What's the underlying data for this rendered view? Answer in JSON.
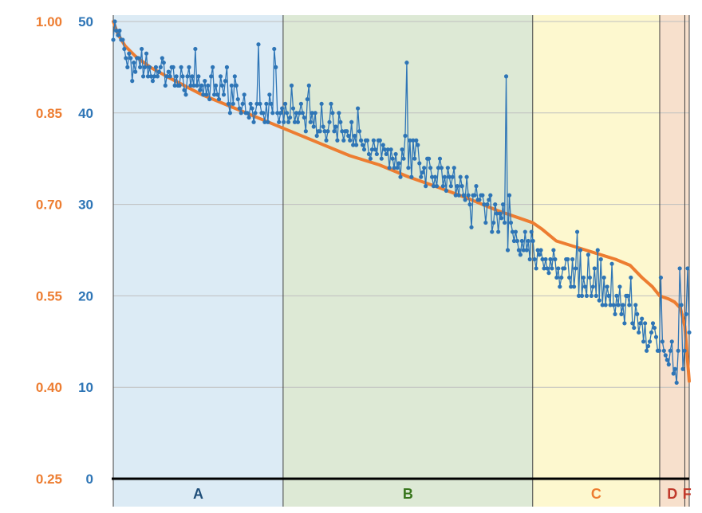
{
  "chart_data": {
    "type": "line",
    "title": "",
    "xlabel": "",
    "ylabel": "",
    "colors": {
      "blue_series": "#2e75b6",
      "orange_series": "#ed7d31",
      "left_axis_labels": "#ed7d31",
      "right_axis_labels": "#2e75b6",
      "grid": "#bfbfbf",
      "axis": "#000000"
    },
    "y_axis_outer": {
      "ticks": [
        "1.00",
        "0.85",
        "0.70",
        "0.55",
        "0.40",
        "0.25"
      ],
      "range": [
        0.25,
        1.0
      ]
    },
    "y_axis_inner": {
      "ticks": [
        "50",
        "40",
        "30",
        "20",
        "10",
        "0"
      ],
      "range": [
        0,
        50
      ]
    },
    "grid": true,
    "x_range": [
      0,
      390
    ],
    "bands": [
      {
        "label": "A",
        "start": 0,
        "end": 115,
        "fill": "#dcebf5",
        "label_color": "#1f4e79"
      },
      {
        "label": "B",
        "start": 115,
        "end": 284,
        "fill": "#dde9d5",
        "label_color": "#38761d"
      },
      {
        "label": "C",
        "start": 284,
        "end": 370,
        "fill": "#fdf8cf",
        "label_color": "#ed7d31"
      },
      {
        "label": "D",
        "start": 370,
        "end": 387,
        "fill": "#f7e0cc",
        "label_color": "#c0392b"
      },
      {
        "label": "F",
        "start": 387,
        "end": 390,
        "fill": "#f7e0cc",
        "label_color": "#c0392b"
      }
    ],
    "series": [
      {
        "axis": "inner",
        "values": [
          48,
          50,
          49,
          48.5,
          49,
          48,
          48,
          47,
          46,
          45,
          46.5,
          46,
          43.5,
          45.5,
          44.5,
          46,
          46,
          45,
          47,
          44,
          45,
          46.5,
          44,
          45,
          44,
          43.5,
          44,
          45,
          44,
          44.5,
          45,
          46,
          45.5,
          43,
          44,
          44.5,
          44,
          45,
          45,
          43,
          44,
          43,
          43,
          45,
          44,
          42.5,
          42,
          44,
          45,
          43,
          44,
          43,
          47,
          43,
          44,
          42.5,
          43,
          42,
          43.5,
          42,
          43,
          41.5,
          44,
          45,
          42,
          43,
          42,
          41.5,
          44,
          43,
          42,
          43.5,
          45,
          41,
          40,
          43,
          41,
          44,
          43,
          41.5,
          40.5,
          40,
          41,
          42,
          40,
          40,
          39.5,
          41,
          40.5,
          39,
          40,
          41,
          47.5,
          41,
          40,
          40,
          39,
          41,
          39,
          42,
          41,
          40,
          47,
          45,
          40,
          39,
          40,
          40.5,
          39,
          41,
          40,
          39,
          39.5,
          43,
          40.5,
          39,
          40,
          39,
          40,
          41,
          40,
          39.5,
          38,
          41.5,
          43,
          39,
          40,
          38.5,
          40,
          37.5,
          38,
          38,
          41,
          38.5,
          38,
          37,
          38,
          39,
          41,
          40,
          38,
          38.5,
          37,
          40,
          39,
          38,
          37,
          38,
          38,
          37.5,
          37,
          39,
          36.5,
          37.5,
          36.5,
          40.5,
          38,
          37,
          36.5,
          36,
          37,
          37,
          35.5,
          35,
          36,
          37,
          36,
          35.5,
          37,
          37,
          35,
          36.5,
          36,
          35.5,
          36,
          34,
          36,
          35,
          34,
          35.5,
          34,
          34.5,
          33,
          36,
          35,
          37.5,
          45.5,
          34,
          37,
          33,
          37,
          35,
          37,
          36.5,
          34.5,
          33,
          33.5,
          34,
          32,
          35,
          35,
          34,
          33,
          32,
          33,
          32,
          34,
          35,
          34,
          32,
          33,
          31.5,
          34,
          33,
          32,
          33,
          34,
          31,
          32,
          31,
          33,
          32,
          31,
          30.5,
          33,
          31,
          30,
          27.5,
          31,
          31,
          32,
          30.5,
          30.5,
          31,
          31,
          30,
          28,
          30,
          30.5,
          31,
          27,
          28,
          30,
          29,
          27,
          29,
          28.5,
          30,
          28,
          44,
          25,
          31,
          28,
          27,
          26,
          27,
          26,
          25,
          24.5,
          26,
          25,
          27,
          25,
          26,
          24,
          27,
          26,
          24,
          23,
          25,
          24.5,
          25,
          24,
          23,
          24,
          23,
          22.5,
          24,
          23,
          25,
          24,
          22,
          23,
          21,
          22,
          23,
          23,
          24,
          24,
          22,
          21,
          24,
          21,
          23,
          27,
          20,
          25,
          20,
          22,
          21,
          20,
          24.5,
          22,
          20,
          21,
          23,
          20,
          25,
          19.5,
          24,
          19,
          22,
          19,
          21,
          20,
          19,
          23.5,
          19,
          18,
          20,
          19,
          21,
          18,
          19,
          17,
          20,
          20,
          19,
          22,
          17,
          16.5,
          19,
          18,
          16,
          17,
          17.5,
          15,
          17,
          14,
          14.5,
          15,
          16,
          17,
          16.5,
          15.5,
          14,
          14,
          22,
          15,
          14,
          13.5,
          13,
          12.5,
          14,
          15,
          11.5,
          12,
          10.5,
          14,
          23,
          19,
          12,
          14,
          18,
          23,
          16
        ],
        "color": "#2e75b6",
        "markers": true
      },
      {
        "axis": "outer",
        "x": [
          0,
          3,
          8,
          15,
          25,
          40,
          60,
          80,
          100,
          115,
          140,
          160,
          180,
          200,
          220,
          240,
          260,
          284,
          290,
          300,
          320,
          340,
          350,
          358,
          365,
          370,
          376,
          380,
          384,
          387,
          390
        ],
        "values": [
          1.0,
          0.98,
          0.96,
          0.943,
          0.925,
          0.905,
          0.88,
          0.86,
          0.84,
          0.825,
          0.8,
          0.78,
          0.765,
          0.745,
          0.728,
          0.71,
          0.69,
          0.67,
          0.66,
          0.64,
          0.625,
          0.61,
          0.6,
          0.58,
          0.565,
          0.55,
          0.545,
          0.54,
          0.53,
          0.5,
          0.41
        ],
        "color": "#ed7d31",
        "markers": false
      }
    ]
  }
}
